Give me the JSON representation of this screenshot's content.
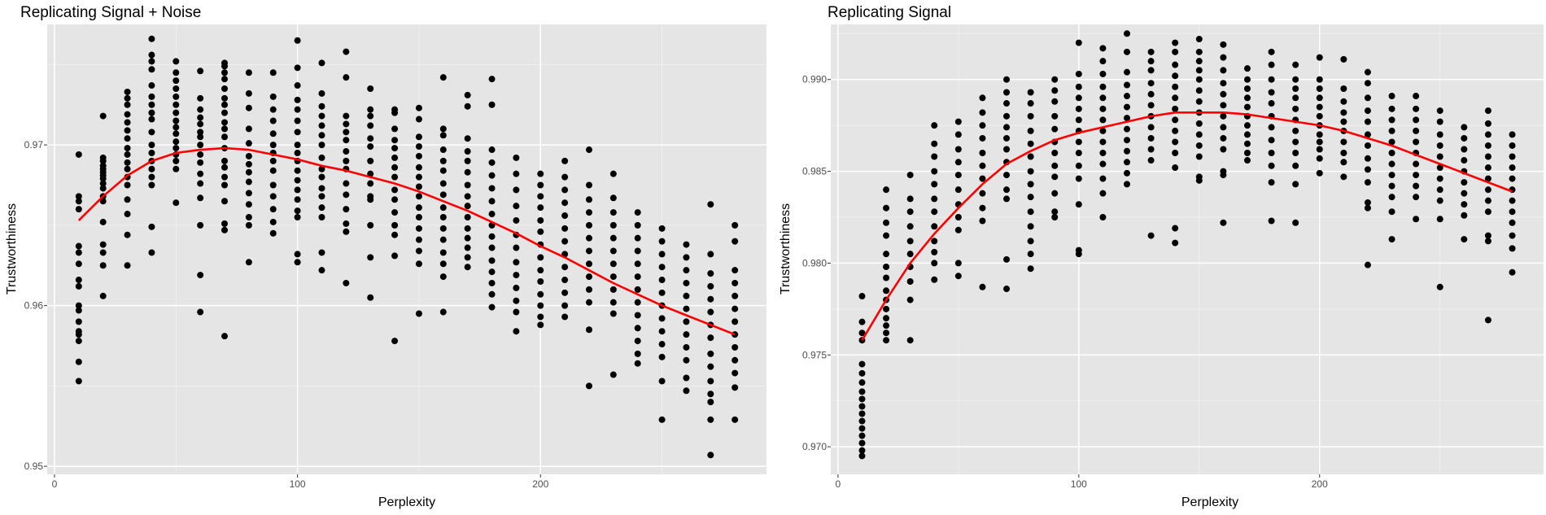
{
  "chart_data": [
    {
      "type": "scatter",
      "title": "Replicating Signal + Noise",
      "xlabel": "Perplexity",
      "ylabel": "Trustworthiness",
      "xlim": [
        -3,
        293
      ],
      "ylim": [
        0.9495,
        0.9775
      ],
      "xticks": [
        0,
        100,
        200
      ],
      "xtick_labels": [
        "0",
        "100",
        "200"
      ],
      "yticks": [
        0.95,
        0.96,
        0.97
      ],
      "ytick_labels": [
        "0.95",
        "0.96",
        "0.97"
      ],
      "grid": true,
      "background": "#e5e5e5",
      "point_color": "#000000",
      "trend_color": "#ff0000",
      "x_levels": [
        10,
        20,
        30,
        40,
        50,
        60,
        70,
        80,
        90,
        100,
        110,
        120,
        130,
        140,
        150,
        160,
        170,
        180,
        190,
        200,
        210,
        220,
        230,
        240,
        250,
        260,
        270,
        280
      ],
      "points_by_x": [
        [
          0.9694,
          0.9668,
          0.9665,
          0.966,
          0.9637,
          0.9633,
          0.9626,
          0.9616,
          0.9612,
          0.96,
          0.9597,
          0.959,
          0.9584,
          0.9582,
          0.9578,
          0.9565,
          0.9553
        ],
        [
          0.9718,
          0.9692,
          0.969,
          0.9687,
          0.9685,
          0.9683,
          0.9681,
          0.9679,
          0.9676,
          0.9673,
          0.9668,
          0.9665,
          0.9652,
          0.9638,
          0.9633,
          0.9625,
          0.9606
        ],
        [
          0.9733,
          0.9729,
          0.9725,
          0.9719,
          0.9714,
          0.9709,
          0.9704,
          0.9698,
          0.9694,
          0.9689,
          0.9685,
          0.968,
          0.9675,
          0.9666,
          0.9657,
          0.9644,
          0.9625
        ],
        [
          0.9766,
          0.9756,
          0.9752,
          0.9747,
          0.9737,
          0.973,
          0.9725,
          0.972,
          0.9716,
          0.9708,
          0.97,
          0.9695,
          0.969,
          0.9685,
          0.968,
          0.9675,
          0.9649,
          0.9633
        ],
        [
          0.9752,
          0.9745,
          0.974,
          0.9735,
          0.973,
          0.9725,
          0.972,
          0.9715,
          0.9711,
          0.9707,
          0.9702,
          0.9698,
          0.9694,
          0.969,
          0.9685,
          0.9664
        ],
        [
          0.9746,
          0.9729,
          0.9722,
          0.9717,
          0.9713,
          0.9708,
          0.9705,
          0.97,
          0.9694,
          0.9689,
          0.9682,
          0.9676,
          0.9667,
          0.965,
          0.9619,
          0.9596
        ],
        [
          0.9751,
          0.9749,
          0.9745,
          0.9741,
          0.9735,
          0.9729,
          0.9725,
          0.972,
          0.9714,
          0.971,
          0.9705,
          0.9698,
          0.969,
          0.9686,
          0.968,
          0.9675,
          0.9665,
          0.9651,
          0.9647,
          0.9581
        ],
        [
          0.9745,
          0.9732,
          0.9723,
          0.971,
          0.9701,
          0.9693,
          0.9688,
          0.9683,
          0.9677,
          0.967,
          0.9663,
          0.9655,
          0.965,
          0.9627
        ],
        [
          0.9745,
          0.973,
          0.9722,
          0.9715,
          0.9707,
          0.97,
          0.9695,
          0.969,
          0.9684,
          0.9675,
          0.9668,
          0.966,
          0.9652,
          0.9645
        ],
        [
          0.9765,
          0.9748,
          0.9737,
          0.9728,
          0.9722,
          0.9715,
          0.9708,
          0.97,
          0.9695,
          0.969,
          0.9684,
          0.9678,
          0.9672,
          0.9666,
          0.9659,
          0.9655,
          0.9632,
          0.9627
        ],
        [
          0.9751,
          0.9732,
          0.9724,
          0.9718,
          0.9712,
          0.9706,
          0.97,
          0.9692,
          0.9685,
          0.968,
          0.9673,
          0.9668,
          0.9661,
          0.9655,
          0.9633,
          0.9622
        ],
        [
          0.9758,
          0.9742,
          0.9718,
          0.9713,
          0.9708,
          0.9703,
          0.9696,
          0.969,
          0.9685,
          0.9676,
          0.9669,
          0.966,
          0.9651,
          0.9646,
          0.9614
        ],
        [
          0.9735,
          0.9722,
          0.9718,
          0.9712,
          0.9704,
          0.9699,
          0.969,
          0.9682,
          0.9676,
          0.9668,
          0.9666,
          0.965,
          0.963,
          0.9605
        ],
        [
          0.9722,
          0.972,
          0.971,
          0.9703,
          0.9698,
          0.9692,
          0.9686,
          0.968,
          0.9672,
          0.9666,
          0.9658,
          0.965,
          0.9644,
          0.9631,
          0.9578
        ],
        [
          0.9723,
          0.9716,
          0.9705,
          0.9699,
          0.9693,
          0.9686,
          0.968,
          0.9674,
          0.9668,
          0.9661,
          0.9655,
          0.9648,
          0.9641,
          0.9634,
          0.9626,
          0.9595
        ],
        [
          0.9742,
          0.971,
          0.9706,
          0.9697,
          0.969,
          0.9684,
          0.9676,
          0.9669,
          0.9661,
          0.9655,
          0.9648,
          0.9641,
          0.9633,
          0.9626,
          0.9618,
          0.9596
        ],
        [
          0.9731,
          0.9724,
          0.9704,
          0.9696,
          0.969,
          0.9683,
          0.9675,
          0.9668,
          0.9662,
          0.9655,
          0.9648,
          0.9642,
          0.9636,
          0.963,
          0.9624
        ],
        [
          0.9741,
          0.9725,
          0.9697,
          0.9689,
          0.9681,
          0.9673,
          0.9665,
          0.9657,
          0.965,
          0.9643,
          0.9636,
          0.9628,
          0.9621,
          0.9614,
          0.9607,
          0.9599
        ],
        [
          0.9692,
          0.9682,
          0.9672,
          0.9662,
          0.9653,
          0.9644,
          0.9636,
          0.9627,
          0.9619,
          0.9611,
          0.9603,
          0.9596,
          0.9584
        ],
        [
          0.9682,
          0.9675,
          0.9668,
          0.9661,
          0.9653,
          0.9646,
          0.9638,
          0.963,
          0.9622,
          0.9615,
          0.9607,
          0.96,
          0.9593,
          0.9588
        ],
        [
          0.969,
          0.968,
          0.9672,
          0.9664,
          0.9656,
          0.9648,
          0.964,
          0.9632,
          0.9624,
          0.9616,
          0.9608,
          0.96,
          0.9593
        ],
        [
          0.9697,
          0.9675,
          0.9666,
          0.9658,
          0.965,
          0.9642,
          0.9634,
          0.9626,
          0.9618,
          0.961,
          0.9602,
          0.9585,
          0.955
        ],
        [
          0.9682,
          0.9667,
          0.9658,
          0.965,
          0.9642,
          0.9634,
          0.9626,
          0.9618,
          0.961,
          0.9602,
          0.9595,
          0.9557
        ],
        [
          0.9658,
          0.965,
          0.9642,
          0.9634,
          0.9626,
          0.9618,
          0.961,
          0.9602,
          0.9594,
          0.9586,
          0.9578,
          0.957,
          0.9564
        ],
        [
          0.9648,
          0.964,
          0.9632,
          0.9624,
          0.9616,
          0.9608,
          0.96,
          0.9592,
          0.9584,
          0.9576,
          0.9568,
          0.9553,
          0.9529
        ],
        [
          0.9638,
          0.963,
          0.9622,
          0.9614,
          0.9606,
          0.9598,
          0.959,
          0.9582,
          0.9574,
          0.9566,
          0.9555,
          0.9547
        ],
        [
          0.9663,
          0.9632,
          0.962,
          0.9612,
          0.9604,
          0.9596,
          0.9588,
          0.958,
          0.957,
          0.9562,
          0.9553,
          0.9545,
          0.954,
          0.9529,
          0.9507
        ],
        [
          0.965,
          0.964,
          0.9622,
          0.9614,
          0.9606,
          0.9598,
          0.959,
          0.9582,
          0.9574,
          0.9566,
          0.9558,
          0.9549,
          0.9529
        ]
      ],
      "trend": {
        "x": [
          10,
          20,
          30,
          40,
          50,
          60,
          70,
          80,
          90,
          100,
          110,
          120,
          130,
          140,
          150,
          160,
          170,
          180,
          190,
          200,
          210,
          220,
          230,
          240,
          250,
          260,
          270,
          280
        ],
        "y": [
          0.9653,
          0.9668,
          0.9681,
          0.969,
          0.9695,
          0.9697,
          0.9698,
          0.9697,
          0.9694,
          0.9691,
          0.9687,
          0.9684,
          0.968,
          0.9676,
          0.9671,
          0.9665,
          0.9659,
          0.9652,
          0.9645,
          0.9637,
          0.963,
          0.9622,
          0.9614,
          0.9607,
          0.96,
          0.9594,
          0.9588,
          0.9582
        ]
      }
    },
    {
      "type": "scatter",
      "title": "Replicating Signal",
      "xlabel": "Perplexity",
      "ylabel": "Trustworthiness",
      "xlim": [
        -3,
        293
      ],
      "ylim": [
        0.9685,
        0.993
      ],
      "xticks": [
        0,
        100,
        200
      ],
      "xtick_labels": [
        "0",
        "100",
        "200"
      ],
      "yticks": [
        0.97,
        0.975,
        0.98,
        0.985,
        0.99
      ],
      "ytick_labels": [
        "0.970",
        "0.975",
        "0.980",
        "0.985",
        "0.990"
      ],
      "grid": true,
      "background": "#e5e5e5",
      "point_color": "#000000",
      "trend_color": "#ff0000",
      "x_levels": [
        10,
        20,
        30,
        40,
        50,
        60,
        70,
        80,
        90,
        100,
        110,
        120,
        130,
        140,
        150,
        160,
        170,
        180,
        190,
        200,
        210,
        220,
        230,
        240,
        250,
        260,
        270,
        280
      ],
      "points_by_x": [
        [
          0.9782,
          0.9768,
          0.9762,
          0.9758,
          0.9745,
          0.974,
          0.9735,
          0.973,
          0.9726,
          0.9722,
          0.9718,
          0.9714,
          0.971,
          0.9706,
          0.9702,
          0.9698,
          0.9695
        ],
        [
          0.984,
          0.983,
          0.9822,
          0.9815,
          0.9805,
          0.9798,
          0.9792,
          0.9785,
          0.978,
          0.9775,
          0.977,
          0.9766,
          0.9762,
          0.9758
        ],
        [
          0.9848,
          0.9835,
          0.9828,
          0.982,
          0.9812,
          0.9805,
          0.9798,
          0.979,
          0.978,
          0.9758
        ],
        [
          0.9875,
          0.9865,
          0.9858,
          0.985,
          0.9843,
          0.9835,
          0.9828,
          0.982,
          0.9812,
          0.9806,
          0.98,
          0.9791
        ],
        [
          0.9877,
          0.987,
          0.9862,
          0.9855,
          0.9848,
          0.984,
          0.9832,
          0.9825,
          0.9818,
          0.98,
          0.9793
        ],
        [
          0.989,
          0.9882,
          0.9875,
          0.9868,
          0.986,
          0.9853,
          0.9846,
          0.9838,
          0.983,
          0.9823,
          0.9787
        ],
        [
          0.99,
          0.9893,
          0.9887,
          0.988,
          0.9874,
          0.9868,
          0.9862,
          0.9855,
          0.9848,
          0.984,
          0.9835,
          0.9802,
          0.9786
        ],
        [
          0.9893,
          0.9887,
          0.988,
          0.9872,
          0.9865,
          0.9858,
          0.985,
          0.9843,
          0.9836,
          0.9828,
          0.982,
          0.9812,
          0.9805,
          0.9797
        ],
        [
          0.99,
          0.9894,
          0.9888,
          0.988,
          0.9873,
          0.9866,
          0.986,
          0.9853,
          0.9847,
          0.9838,
          0.9828,
          0.9825
        ],
        [
          0.992,
          0.9903,
          0.9896,
          0.989,
          0.9884,
          0.9878,
          0.9872,
          0.9866,
          0.986,
          0.9853,
          0.9846,
          0.9832,
          0.9807,
          0.9805
        ],
        [
          0.9917,
          0.991,
          0.9903,
          0.9896,
          0.989,
          0.9884,
          0.9878,
          0.9872,
          0.9866,
          0.986,
          0.9854,
          0.9846,
          0.9838,
          0.9825
        ],
        [
          0.9925,
          0.9915,
          0.9904,
          0.9897,
          0.9891,
          0.9885,
          0.9879,
          0.9873,
          0.9867,
          0.9861,
          0.9855,
          0.9849,
          0.9843
        ],
        [
          0.9915,
          0.991,
          0.9905,
          0.9898,
          0.9892,
          0.9886,
          0.988,
          0.9874,
          0.9868,
          0.9862,
          0.9856,
          0.9815
        ],
        [
          0.992,
          0.9915,
          0.9908,
          0.9902,
          0.9896,
          0.989,
          0.9884,
          0.9878,
          0.9872,
          0.9866,
          0.986,
          0.9852,
          0.9819,
          0.9811
        ],
        [
          0.9922,
          0.9915,
          0.991,
          0.9905,
          0.99,
          0.9894,
          0.9888,
          0.9882,
          0.9876,
          0.987,
          0.9864,
          0.9858,
          0.9847,
          0.9845
        ],
        [
          0.9919,
          0.9912,
          0.9905,
          0.9898,
          0.9892,
          0.9886,
          0.988,
          0.9874,
          0.9868,
          0.9862,
          0.985,
          0.9848,
          0.9822
        ],
        [
          0.9906,
          0.99,
          0.9895,
          0.989,
          0.9885,
          0.988,
          0.9875,
          0.987,
          0.9865,
          0.986,
          0.9856
        ],
        [
          0.9915,
          0.9908,
          0.99,
          0.9893,
          0.9887,
          0.988,
          0.9874,
          0.9867,
          0.986,
          0.9853,
          0.9844,
          0.9823
        ],
        [
          0.9908,
          0.99,
          0.9895,
          0.989,
          0.9884,
          0.9878,
          0.9872,
          0.9866,
          0.986,
          0.9853,
          0.9843,
          0.9822
        ],
        [
          0.9912,
          0.99,
          0.9895,
          0.989,
          0.9885,
          0.988,
          0.9875,
          0.987,
          0.9866,
          0.9862,
          0.9857,
          0.9849
        ],
        [
          0.9911,
          0.9895,
          0.9888,
          0.9882,
          0.9877,
          0.9872,
          0.9866,
          0.986,
          0.9855,
          0.9847
        ],
        [
          0.9904,
          0.9898,
          0.989,
          0.9883,
          0.9877,
          0.987,
          0.9864,
          0.9857,
          0.9851,
          0.9844,
          0.9833,
          0.983,
          0.9799
        ],
        [
          0.9891,
          0.9884,
          0.9878,
          0.9872,
          0.9866,
          0.986,
          0.9854,
          0.9848,
          0.9842,
          0.9836,
          0.9828,
          0.9813
        ],
        [
          0.9891,
          0.9884,
          0.9878,
          0.9872,
          0.9866,
          0.986,
          0.9854,
          0.9848,
          0.9842,
          0.9836,
          0.9824
        ],
        [
          0.9883,
          0.9877,
          0.987,
          0.9864,
          0.9858,
          0.9852,
          0.9846,
          0.984,
          0.9834,
          0.9824,
          0.9787
        ],
        [
          0.9874,
          0.9868,
          0.9862,
          0.9856,
          0.985,
          0.9844,
          0.9838,
          0.9832,
          0.9826,
          0.9813
        ],
        [
          0.9883,
          0.9876,
          0.987,
          0.9864,
          0.9858,
          0.9852,
          0.9846,
          0.984,
          0.9834,
          0.9828,
          0.9815,
          0.9812,
          0.9769
        ],
        [
          0.987,
          0.9864,
          0.9858,
          0.9852,
          0.9846,
          0.984,
          0.9834,
          0.9828,
          0.9822,
          0.9815,
          0.9808,
          0.9795
        ]
      ],
      "trend": {
        "x": [
          10,
          20,
          30,
          40,
          50,
          60,
          70,
          80,
          90,
          100,
          110,
          120,
          130,
          140,
          150,
          160,
          170,
          180,
          190,
          200,
          210,
          220,
          230,
          240,
          250,
          260,
          270,
          280
        ],
        "y": [
          0.9758,
          0.978,
          0.98,
          0.9816,
          0.983,
          0.9843,
          0.9854,
          0.9861,
          0.9867,
          0.9871,
          0.9874,
          0.9877,
          0.988,
          0.9882,
          0.9882,
          0.9882,
          0.9881,
          0.9879,
          0.9877,
          0.9875,
          0.9872,
          0.9868,
          0.9864,
          0.9859,
          0.9854,
          0.9849,
          0.9844,
          0.9839
        ]
      }
    }
  ]
}
